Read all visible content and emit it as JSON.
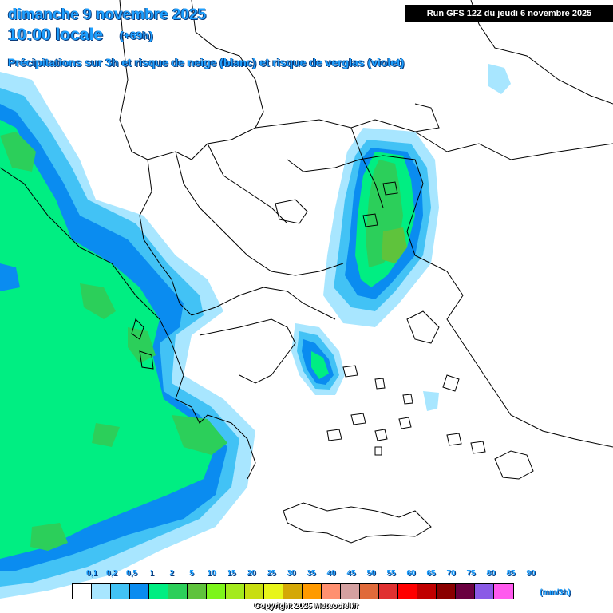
{
  "header": {
    "date": "dimanche 9 novembre 2025",
    "local_time": "10:00 locale",
    "lead_time": "(+69h)",
    "subtitle": "Précipitations sur 3h et risque de neige (blanc) et risque de verglas (violet)"
  },
  "run_badge": "Run GFS 12Z du jeudi 6 novembre 2025",
  "legend": {
    "ticks": [
      "0,1",
      "0,2",
      "0,5",
      "1",
      "2",
      "5",
      "10",
      "15",
      "20",
      "25",
      "30",
      "35",
      "40",
      "45",
      "50",
      "55",
      "60",
      "65",
      "70",
      "75",
      "80",
      "85",
      "90"
    ],
    "colors": [
      "#ffffff",
      "#a8e6ff",
      "#42c2f5",
      "#0a8cf0",
      "#00ee82",
      "#2ccf5a",
      "#5fc33c",
      "#7df51a",
      "#a4ea1c",
      "#c8de10",
      "#e8f51a",
      "#d4a806",
      "#ff9a00",
      "#ff9070",
      "#d4a0a0",
      "#e06a3a",
      "#e03030",
      "#ff0000",
      "#c00000",
      "#8a0000",
      "#6a0040",
      "#8a5ae6",
      "#ff5aee"
    ],
    "unit": "(mm/3h)"
  },
  "copyright": "Copyright 2025 Meteociel.fr",
  "icons": {
    "map": "precipitation-map"
  }
}
